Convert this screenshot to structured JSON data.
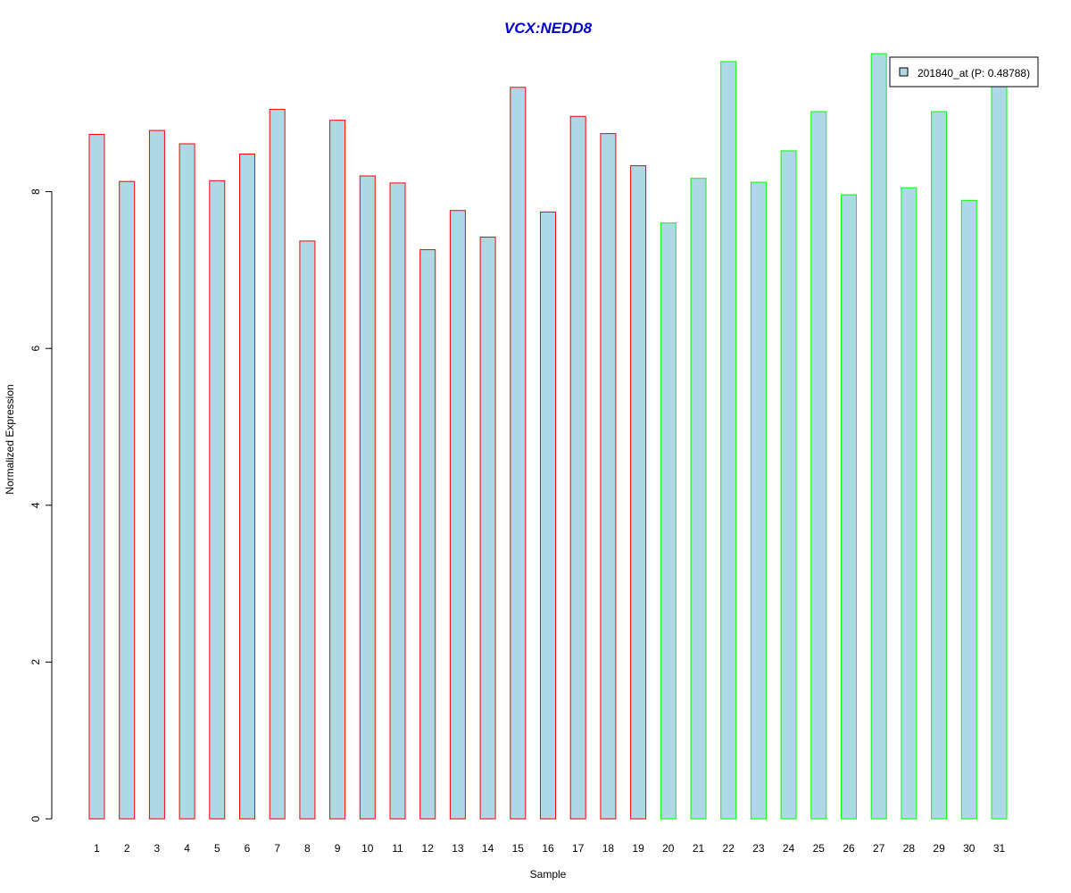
{
  "chart_data": {
    "type": "bar",
    "title": "VCX:NEDD8",
    "xlabel": "Sample",
    "ylabel": "Normalized Expression",
    "ylim": [
      0,
      9.8
    ],
    "yticks": [
      0,
      2,
      4,
      6,
      8
    ],
    "grid": false,
    "legend": {
      "placement": "top-right",
      "label": "201840_at (P: 0.48788)",
      "fill_color": "#add8e6"
    },
    "colors": {
      "bar_fill": "#add8e6",
      "group1_border": "#ff0000",
      "group2_border": "#00ff00",
      "title": "#0000cd"
    },
    "categories": [
      "1",
      "2",
      "3",
      "4",
      "5",
      "6",
      "7",
      "8",
      "9",
      "10",
      "11",
      "12",
      "13",
      "14",
      "15",
      "16",
      "17",
      "18",
      "19",
      "20",
      "21",
      "22",
      "23",
      "24",
      "25",
      "26",
      "27",
      "28",
      "29",
      "30",
      "31"
    ],
    "values": [
      8.73,
      8.13,
      8.78,
      8.61,
      8.14,
      8.48,
      9.05,
      7.37,
      8.91,
      8.2,
      8.11,
      7.26,
      7.76,
      7.42,
      9.33,
      7.74,
      8.96,
      8.74,
      8.33,
      7.6,
      8.17,
      9.66,
      8.12,
      8.52,
      9.02,
      7.96,
      9.76,
      8.05,
      9.02,
      7.89,
      9.38
    ],
    "groups": [
      1,
      1,
      1,
      1,
      1,
      1,
      1,
      1,
      1,
      1,
      1,
      1,
      1,
      1,
      1,
      1,
      1,
      1,
      1,
      2,
      2,
      2,
      2,
      2,
      2,
      2,
      2,
      2,
      2,
      2,
      2
    ]
  }
}
